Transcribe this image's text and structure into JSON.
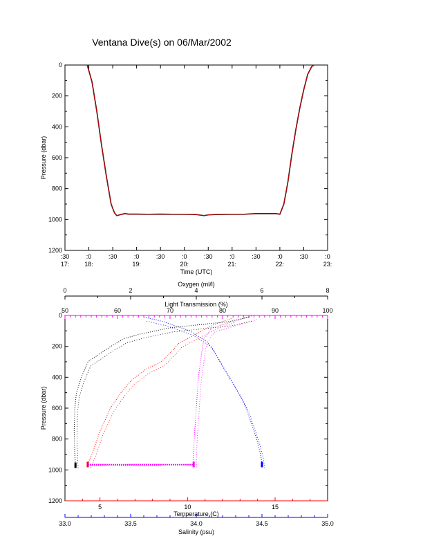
{
  "title": "Ventana Dive(s) on 06/Mar/2002",
  "colors": {
    "axis": "#000000",
    "pressure_trace_line": "#ff0000",
    "pressure_trace_points": "#000000",
    "oxygen": "#000000",
    "light": "#ff00ff",
    "temperature": "#ff0000",
    "salinity": "#0000ff"
  },
  "chart_data": [
    {
      "type": "line",
      "xlabel": "Time (UTC)",
      "ylabel": "Pressure (dbar)",
      "y_reversed": true,
      "ylim": [
        0,
        1200
      ],
      "xlim": [
        "17:30",
        "23:00"
      ],
      "y_ticks": [
        "0",
        "200",
        "400",
        "600",
        "800",
        "1000",
        "1200"
      ],
      "x_ticks_top": [
        ":30",
        ":0",
        ":30",
        ":0",
        ":30",
        ":0",
        ":30",
        ":0",
        ":30",
        ":0",
        ":30",
        ":0"
      ],
      "x_ticks_bottom": [
        "17:",
        "18:",
        "",
        "19:",
        "",
        "20:",
        "",
        "21:",
        "",
        "22:",
        "",
        "23:"
      ],
      "series": [
        {
          "x": [
            "17:58",
            "18:04",
            "18:10",
            "18:16",
            "18:22",
            "18:28",
            "18:32",
            "18:35",
            "18:40",
            "18:45",
            "18:50",
            "19:00",
            "19:15",
            "19:30",
            "19:45",
            "20:00",
            "20:15",
            "20:25",
            "20:30",
            "20:45",
            "21:00",
            "21:15",
            "21:30",
            "21:45",
            "21:55",
            "22:00",
            "22:05",
            "22:10",
            "22:15",
            "22:20",
            "22:25",
            "22:30",
            "22:35",
            "22:40",
            "22:43"
          ],
          "y": [
            0,
            110,
            300,
            520,
            720,
            900,
            955,
            975,
            968,
            962,
            965,
            965,
            966,
            965,
            966,
            966,
            968,
            975,
            970,
            967,
            966,
            966,
            962,
            962,
            962,
            966,
            900,
            760,
            580,
            420,
            280,
            160,
            60,
            10,
            0
          ]
        }
      ]
    },
    {
      "type": "scatter",
      "ylabel": "Pressure (dbar)",
      "y_reversed": true,
      "ylim": [
        0,
        1200
      ],
      "y_ticks": [
        "0",
        "200",
        "400",
        "600",
        "800",
        "1000",
        "1200"
      ],
      "axes": {
        "oxygen": {
          "label": "Oxygen (ml/l)",
          "range": [
            0,
            8
          ],
          "ticks": [
            "0",
            "2",
            "4",
            "6",
            "8"
          ]
        },
        "light": {
          "label": "Light Transmission (%)",
          "range": [
            50,
            100
          ],
          "ticks": [
            "50",
            "60",
            "70",
            "80",
            "90",
            "100"
          ]
        },
        "temperature": {
          "label": "Temperature (C)",
          "range": [
            3,
            18
          ],
          "ticks": [
            "5",
            "10",
            "15"
          ]
        },
        "salinity": {
          "label": "Salinity (psu)",
          "range": [
            33.0,
            35.0
          ],
          "ticks": [
            "33.0",
            "33.5",
            "34.0",
            "34.5",
            "35.0"
          ]
        }
      },
      "series": [
        {
          "name": "Oxygen (ml/l)",
          "x": [
            5.6,
            5.0,
            3.2,
            2.3,
            1.8,
            1.4,
            0.7,
            0.5,
            0.35,
            0.3,
            0.28,
            0.3,
            0.32
          ],
          "y": [
            10,
            40,
            80,
            120,
            150,
            200,
            300,
            400,
            500,
            600,
            750,
            900,
            970
          ]
        },
        {
          "name": "Light Transmission (%)",
          "x": [
            86,
            84,
            78,
            76.5,
            76.2,
            75.8,
            75.4,
            75.2,
            75.0,
            74.8,
            74.6,
            74.5,
            74.5
          ],
          "y": [
            0,
            20,
            80,
            150,
            200,
            300,
            400,
            500,
            600,
            700,
            800,
            900,
            965
          ]
        },
        {
          "name": "Temperature (C)",
          "x": [
            12.5,
            11.5,
            10.5,
            9.5,
            9.2,
            8.5,
            7.6,
            6.8,
            6.2,
            5.6,
            5.0,
            4.6,
            4.3
          ],
          "y": [
            20,
            60,
            120,
            180,
            220,
            300,
            350,
            420,
            500,
            600,
            750,
            880,
            965
          ]
        },
        {
          "name": "Salinity (psu)",
          "x": [
            33.6,
            33.75,
            33.95,
            34.08,
            34.12,
            34.18,
            34.25,
            34.32,
            34.38,
            34.42,
            34.46,
            34.49,
            34.5
          ],
          "y": [
            10,
            40,
            100,
            170,
            210,
            300,
            400,
            500,
            600,
            700,
            800,
            900,
            965
          ]
        }
      ]
    }
  ]
}
